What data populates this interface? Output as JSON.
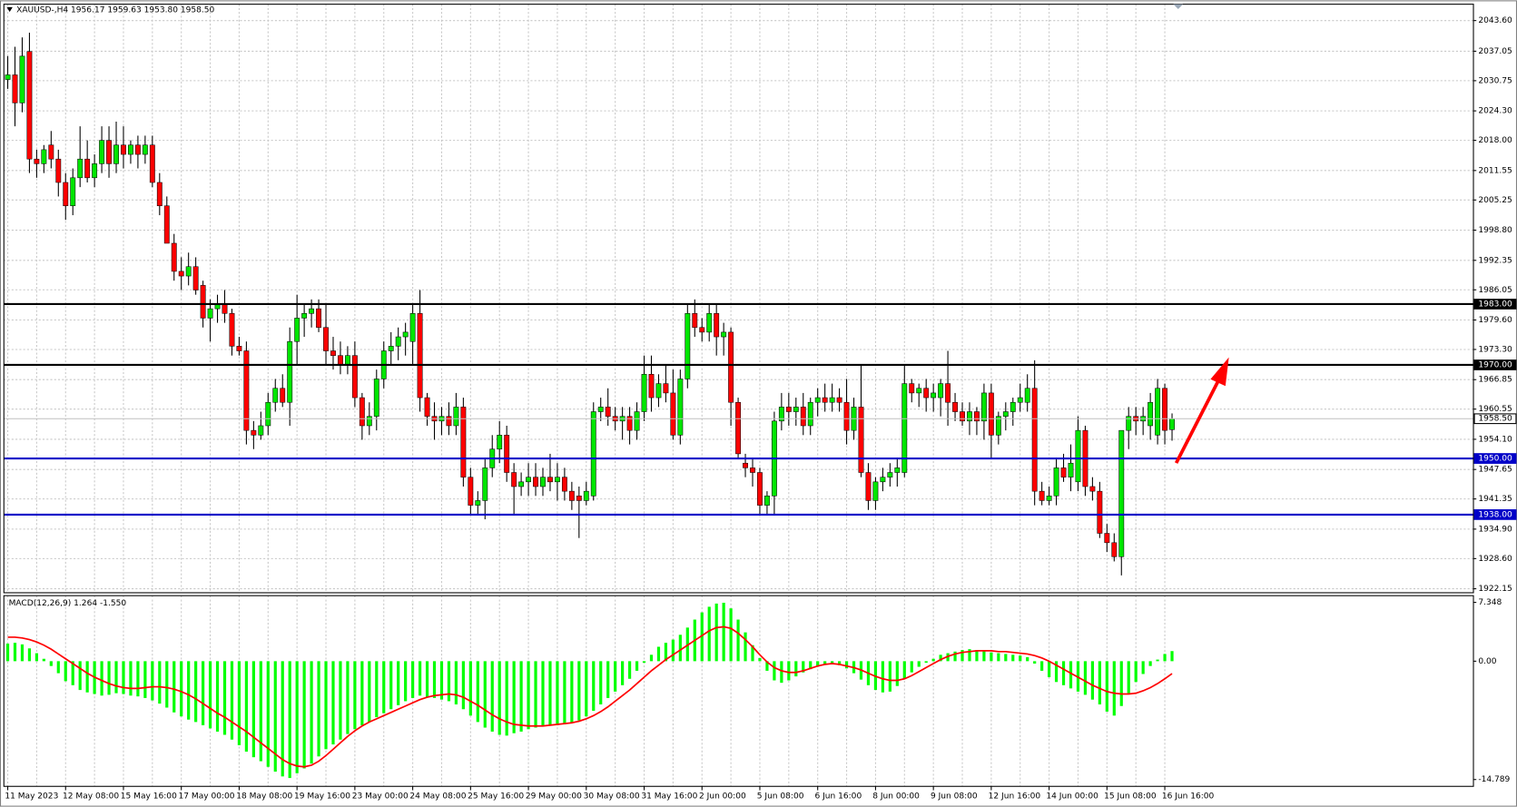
{
  "chart_data": [
    {
      "type": "candlestick",
      "title": "XAUUSD-,H4  1956.17 1959.63 1953.80 1958.50",
      "categories": [
        "11 May 2023",
        null,
        null,
        null,
        null,
        null,
        null,
        null,
        "12 May 08:00",
        null,
        null,
        null,
        null,
        null,
        null,
        null,
        "15 May 16:00",
        null,
        null,
        null,
        null,
        null,
        null,
        null,
        "17 May 00:00",
        null,
        null,
        null,
        null,
        null,
        null,
        null,
        "18 May 08:00",
        null,
        null,
        null,
        null,
        null,
        null,
        null,
        "19 May 16:00",
        null,
        null,
        null,
        null,
        null,
        null,
        null,
        "23 May 00:00",
        null,
        null,
        null,
        null,
        null,
        null,
        null,
        "24 May 08:00",
        null,
        null,
        null,
        null,
        null,
        null,
        null,
        "25 May 16:00",
        null,
        null,
        null,
        null,
        null,
        null,
        null,
        "29 May 00:00",
        null,
        null,
        null,
        null,
        null,
        null,
        null,
        "30 May 08:00",
        null,
        null,
        null,
        null,
        null,
        null,
        null,
        "31 May 16:00",
        null,
        null,
        null,
        null,
        null,
        null,
        null,
        "2 Jun 00:00",
        null,
        null,
        null,
        null,
        null,
        null,
        null,
        "5 Jun 08:00",
        null,
        null,
        null,
        null,
        null,
        null,
        null,
        "6 Jun 16:00",
        null,
        null,
        null,
        null,
        null,
        null,
        null,
        "8 Jun 00:00",
        null,
        null,
        null,
        null,
        null,
        null,
        null,
        "9 Jun 08:00",
        null,
        null,
        null,
        null,
        null,
        null,
        null,
        "12 Jun 16:00",
        null,
        null,
        null,
        null,
        null,
        null,
        null,
        "14 Jun 00:00",
        null,
        null,
        null,
        null,
        null,
        null,
        null,
        "15 Jun 08:00",
        null,
        null,
        null,
        null,
        null,
        null,
        null,
        "16 Jun 16:00",
        null
      ],
      "open": [
        2031,
        2032,
        2026,
        2037,
        2014,
        2013,
        2017,
        2014,
        2009,
        2004,
        2010,
        2014,
        2010,
        2013,
        2018,
        2013,
        2017,
        2015,
        2017,
        2015,
        2017,
        2009,
        2004,
        1996,
        1990,
        1989,
        1991,
        1987,
        1980,
        1982,
        1983,
        1981,
        1974,
        1973,
        1956,
        1955,
        1957,
        1962,
        1965,
        1962,
        1975,
        1980,
        1981,
        1982,
        1978,
        1973,
        1972,
        1970,
        1972,
        1963,
        1957,
        1959,
        1967,
        1973,
        1974,
        1976,
        1975,
        1981,
        1963,
        1959,
        1958,
        1959,
        1957,
        1961,
        1946,
        1940,
        1941,
        1948,
        1952,
        1955,
        1947,
        1944,
        1945,
        1946,
        1944,
        1946,
        1945,
        1946,
        1943,
        1942,
        1941,
        1942,
        1960,
        1961,
        1959,
        1958,
        1959,
        1956,
        1960,
        1968,
        1963,
        1966,
        1964,
        1955,
        1967,
        1981,
        1978,
        1977,
        1981,
        1976,
        1977,
        1962,
        1949,
        1948,
        1947,
        1940,
        1942,
        1958,
        1961,
        1960,
        1961,
        1957,
        1962,
        1963,
        1962,
        1963,
        1962,
        1956,
        1961,
        1947,
        1941,
        1945,
        1946,
        1947,
        1947,
        1966,
        1964,
        1965,
        1963,
        1963,
        1966,
        1962,
        1960,
        1958,
        1960,
        1958,
        1964,
        1955,
        1959,
        1960,
        1962,
        1962,
        1965,
        1943,
        1941,
        1942,
        1948,
        1946,
        1945,
        1956,
        1944,
        1943,
        1934,
        1932,
        1929,
        1956,
        1959,
        1958,
        1957,
        1955,
        1965,
        1956.17
      ],
      "high": [
        2036,
        2038,
        2040,
        2041,
        2016,
        2017,
        2020,
        2016,
        2011,
        2012,
        2021,
        2018,
        2015,
        2021,
        2021,
        2022,
        2021,
        2018,
        2019,
        2019,
        2019,
        2011,
        2006,
        1998,
        1993,
        1994,
        1993,
        1988,
        1984,
        1985,
        1986,
        1982,
        1976,
        1975,
        1958,
        1960,
        1964,
        1967,
        1968,
        1978,
        1985,
        1983,
        1984,
        1984,
        1983,
        1976,
        1975,
        1974,
        1975,
        1964,
        1962,
        1969,
        1975,
        1977,
        1978,
        1979,
        1983,
        1986,
        1964,
        1962,
        1961,
        1962,
        1964,
        1963,
        1948,
        1943,
        1950,
        1955,
        1958,
        1957,
        1949,
        1947,
        1949,
        1949,
        1948,
        1951,
        1949,
        1948,
        1945,
        1944,
        1945,
        1962,
        1963,
        1965,
        1961,
        1961,
        1961,
        1962,
        1972,
        1972,
        1968,
        1970,
        1969,
        1969,
        1983,
        1984,
        1980,
        1983,
        1983,
        1979,
        1978,
        1963,
        1951,
        1950,
        1948,
        1943,
        1960,
        1964,
        1964,
        1963,
        1964,
        1963,
        1965,
        1966,
        1966,
        1965,
        1967,
        1963,
        1970,
        1949,
        1946,
        1948,
        1949,
        1950,
        1970,
        1967,
        1966,
        1967,
        1966,
        1967,
        1973,
        1964,
        1962,
        1962,
        1961,
        1966,
        1966,
        1960,
        1962,
        1963,
        1966,
        1968,
        1971,
        1945,
        1944,
        1950,
        1951,
        1953,
        1959,
        1957,
        1946,
        1945,
        1936,
        1934,
        1955,
        1961,
        1961,
        1961,
        1964,
        1967,
        1966,
        1959.63
      ],
      "low": [
        2029,
        2021,
        2024,
        2011,
        2010,
        2011,
        2012,
        2006,
        2001,
        2002,
        2008,
        2009,
        2008,
        2011,
        2010,
        2011,
        2012,
        2013,
        2012,
        2013,
        2008,
        2002,
        1996,
        1988,
        1986,
        1987,
        1985,
        1978,
        1975,
        1979,
        1979,
        1972,
        1972,
        1953,
        1952,
        1954,
        1955,
        1960,
        1961,
        1957,
        1970,
        1976,
        1978,
        1977,
        1970,
        1969,
        1968,
        1968,
        1961,
        1954,
        1955,
        1956,
        1965,
        1970,
        1971,
        1972,
        1970,
        1960,
        1957,
        1954,
        1955,
        1955,
        1955,
        1944,
        1938,
        1938,
        1937,
        1946,
        1949,
        1945,
        1938,
        1942,
        1942,
        1942,
        1942,
        1943,
        1941,
        1941,
        1939,
        1933,
        1940,
        1941,
        1958,
        1957,
        1956,
        1954,
        1953,
        1954,
        1958,
        1960,
        1961,
        1962,
        1954,
        1953,
        1965,
        1976,
        1975,
        1975,
        1972,
        1972,
        1957,
        1950,
        1946,
        1944,
        1938,
        1938,
        1938,
        1956,
        1957,
        1957,
        1955,
        1955,
        1959,
        1960,
        1960,
        1960,
        1953,
        1954,
        1946,
        1939,
        1939,
        1943,
        1944,
        1944,
        1946,
        1962,
        1961,
        1960,
        1960,
        1959,
        1957,
        1958,
        1957,
        1955,
        1955,
        1954,
        1950,
        1953,
        1956,
        1957,
        1960,
        1960,
        1940,
        1940,
        1940,
        1940,
        1945,
        1943,
        1943,
        1942,
        1941,
        1933,
        1930,
        1928,
        1925,
        1952,
        1955,
        1955,
        1954,
        1953,
        1953,
        1953.8
      ],
      "close": [
        2032,
        2026,
        2036,
        2014,
        2013,
        2016,
        2014,
        2009,
        2004,
        2010,
        2014,
        2010,
        2013,
        2018,
        2013,
        2017,
        2015,
        2017,
        2015,
        2017,
        2009,
        2004,
        1996,
        1990,
        1989,
        1991,
        1986,
        1980,
        1982,
        1983,
        1981,
        1974,
        1973,
        1956,
        1955,
        1957,
        1962,
        1965,
        1962,
        1975,
        1980,
        1981,
        1982,
        1978,
        1973,
        1972,
        1970,
        1972,
        1963,
        1957,
        1959,
        1967,
        1973,
        1974,
        1976,
        1977,
        1981,
        1963,
        1959,
        1958,
        1959,
        1957,
        1961,
        1946,
        1940,
        1941,
        1948,
        1952,
        1955,
        1947,
        1944,
        1945,
        1946,
        1944,
        1946,
        1945,
        1946,
        1943,
        1941,
        1941,
        1943,
        1960,
        1961,
        1959,
        1958,
        1959,
        1956,
        1960,
        1968,
        1963,
        1966,
        1964,
        1955,
        1967,
        1981,
        1978,
        1977,
        1981,
        1976,
        1977,
        1962,
        1951,
        1948,
        1947,
        1940,
        1942,
        1958,
        1961,
        1960,
        1961,
        1957,
        1962,
        1963,
        1962,
        1963,
        1962,
        1956,
        1961,
        1947,
        1941,
        1945,
        1946,
        1947,
        1948,
        1966,
        1964,
        1965,
        1963,
        1964,
        1966,
        1962,
        1960,
        1958,
        1960,
        1958,
        1964,
        1955,
        1959,
        1960,
        1962,
        1963,
        1965,
        1943,
        1941,
        1942,
        1948,
        1946,
        1949,
        1956,
        1944,
        1943,
        1934,
        1932,
        1929,
        1956,
        1959,
        1958,
        1959,
        1962,
        1965,
        1956,
        1958.5
      ],
      "up_color": "#00e600",
      "down_color": "#ff0000",
      "wick_color": "#000000",
      "ylim": [
        1921.3,
        2047.1
      ],
      "yticks": [
        {
          "value": 2043.6,
          "label": "2043.60"
        },
        {
          "value": 2037.05,
          "label": "2037.05"
        },
        {
          "value": 2030.75,
          "label": "2030.75"
        },
        {
          "value": 2024.3,
          "label": "2024.30"
        },
        {
          "value": 2018,
          "label": "2018.00"
        },
        {
          "value": 2011.55,
          "label": "2011.55"
        },
        {
          "value": 2005.25,
          "label": "2005.25"
        },
        {
          "value": 1998.8,
          "label": "1998.80"
        },
        {
          "value": 1992.35,
          "label": "1992.35"
        },
        {
          "value": 1986.05,
          "label": "1986.05"
        },
        {
          "value": 1979.6,
          "label": "1979.60"
        },
        {
          "value": 1973.3,
          "label": "1973.30"
        },
        {
          "value": 1966.85,
          "label": "1966.85"
        },
        {
          "value": 1960.55,
          "label": "1960.55"
        },
        {
          "value": 1954.1,
          "label": "1954.10"
        },
        {
          "value": 1947.65,
          "label": "1947.65"
        },
        {
          "value": 1941.35,
          "label": "1941.35"
        },
        {
          "value": 1934.9,
          "label": "1934.90"
        },
        {
          "value": 1928.6,
          "label": "1928.60"
        },
        {
          "value": 1922.15,
          "label": "1922.15"
        }
      ],
      "hlines": [
        {
          "value": 1983,
          "label": "1983.00",
          "color": "#000000"
        },
        {
          "value": 1970,
          "label": "1970.00",
          "color": "#000000"
        },
        {
          "value": 1950,
          "label": "1950.00",
          "color": "#0000c8"
        },
        {
          "value": 1938,
          "label": "1938.00",
          "color": "#0000c8"
        },
        {
          "value": 1958.5,
          "label": "1958.50",
          "color": "#c0c0c0"
        }
      ],
      "grid": true
    },
    {
      "type": "macd",
      "title": "MACD(12,26,9) 1.264 -1.550",
      "histogram": {
        "color": "#00ff00",
        "values": [
          2.2,
          2.3,
          2.1,
          1.6,
          1.0,
          0.3,
          -0.6,
          -1.5,
          -2.5,
          -3.0,
          -3.6,
          -3.9,
          -4.1,
          -4.3,
          -4.2,
          -4.0,
          -4.1,
          -4.3,
          -4.4,
          -4.6,
          -4.9,
          -5.3,
          -5.8,
          -6.4,
          -6.9,
          -7.3,
          -7.6,
          -8.0,
          -8.4,
          -8.8,
          -9.2,
          -9.8,
          -10.5,
          -11.3,
          -12.0,
          -12.5,
          -13.2,
          -13.8,
          -14.4,
          -14.6,
          -14.0,
          -13.4,
          -12.8,
          -11.9,
          -11.0,
          -10.4,
          -9.8,
          -9.1,
          -8.5,
          -8.0,
          -7.6,
          -7.0,
          -6.5,
          -6.0,
          -5.5,
          -5.0,
          -4.6,
          -4.3,
          -4.5,
          -4.6,
          -4.8,
          -5.0,
          -5.4,
          -6.0,
          -6.8,
          -7.6,
          -8.3,
          -8.8,
          -9.2,
          -9.3,
          -9.0,
          -8.8,
          -8.5,
          -8.3,
          -8.1,
          -8.0,
          -8.0,
          -7.9,
          -7.7,
          -7.4,
          -6.9,
          -6.2,
          -5.4,
          -4.6,
          -3.8,
          -3.0,
          -2.2,
          -1.2,
          -0.2,
          0.8,
          1.8,
          2.3,
          2.7,
          3.3,
          4.2,
          5.2,
          6.1,
          6.8,
          7.2,
          7.3,
          6.6,
          5.2,
          3.6,
          2.0,
          0.4,
          -1.2,
          -2.4,
          -2.7,
          -2.4,
          -1.9,
          -1.4,
          -1.0,
          -0.7,
          -0.4,
          -0.3,
          -0.5,
          -0.9,
          -1.5,
          -2.3,
          -3.0,
          -3.6,
          -3.9,
          -3.8,
          -3.1,
          -2.2,
          -1.4,
          -0.7,
          -0.2,
          0.3,
          0.8,
          1.0,
          1.2,
          1.4,
          1.5,
          1.4,
          1.3,
          1.1,
          1.0,
          0.9,
          0.8,
          0.7,
          0.5,
          -0.3,
          -1.2,
          -2.0,
          -2.6,
          -3.0,
          -3.4,
          -3.8,
          -4.2,
          -4.8,
          -5.4,
          -6.3,
          -6.8,
          -5.6,
          -4.0,
          -2.6,
          -1.6,
          -0.6,
          0.2,
          0.9,
          1.264
        ]
      },
      "signal": {
        "color": "#ff0000",
        "values": [
          3.0,
          3.0,
          2.9,
          2.7,
          2.4,
          2.0,
          1.5,
          0.9,
          0.3,
          -0.3,
          -0.9,
          -1.5,
          -2.0,
          -2.4,
          -2.8,
          -3.1,
          -3.3,
          -3.4,
          -3.4,
          -3.3,
          -3.2,
          -3.2,
          -3.3,
          -3.5,
          -3.8,
          -4.2,
          -4.7,
          -5.3,
          -5.9,
          -6.5,
          -7.0,
          -7.6,
          -8.2,
          -8.8,
          -9.5,
          -10.2,
          -10.9,
          -11.6,
          -12.3,
          -12.8,
          -13.1,
          -13.2,
          -13.0,
          -12.5,
          -11.8,
          -11.0,
          -10.2,
          -9.4,
          -8.7,
          -8.1,
          -7.6,
          -7.2,
          -6.8,
          -6.4,
          -6.0,
          -5.6,
          -5.2,
          -4.8,
          -4.5,
          -4.3,
          -4.2,
          -4.1,
          -4.2,
          -4.5,
          -5.0,
          -5.5,
          -6.1,
          -6.7,
          -7.2,
          -7.6,
          -7.9,
          -8.0,
          -8.1,
          -8.1,
          -8.1,
          -8.0,
          -7.9,
          -7.8,
          -7.7,
          -7.5,
          -7.2,
          -6.8,
          -6.3,
          -5.7,
          -5.0,
          -4.3,
          -3.6,
          -2.8,
          -2.0,
          -1.2,
          -0.5,
          0.2,
          0.8,
          1.4,
          2.0,
          2.6,
          3.2,
          3.8,
          4.2,
          4.3,
          4.1,
          3.5,
          2.7,
          1.8,
          0.8,
          -0.1,
          -0.8,
          -1.2,
          -1.4,
          -1.4,
          -1.2,
          -0.9,
          -0.6,
          -0.4,
          -0.3,
          -0.4,
          -0.6,
          -0.8,
          -1.1,
          -1.5,
          -1.9,
          -2.2,
          -2.4,
          -2.4,
          -2.2,
          -1.8,
          -1.3,
          -0.8,
          -0.3,
          0.2,
          0.6,
          0.9,
          1.1,
          1.2,
          1.3,
          1.3,
          1.3,
          1.2,
          1.2,
          1.1,
          1.0,
          0.9,
          0.7,
          0.4,
          0.0,
          -0.5,
          -1.0,
          -1.5,
          -2.0,
          -2.5,
          -3.0,
          -3.4,
          -3.8,
          -4.0,
          -4.1,
          -4.1,
          -4.0,
          -3.7,
          -3.3,
          -2.8,
          -2.2,
          -1.55
        ]
      },
      "ylim": [
        -15.64,
        8.19
      ],
      "yticks": [
        7.348,
        {
          "value": 0,
          "label": "0.00"
        },
        -14.789
      ]
    }
  ]
}
